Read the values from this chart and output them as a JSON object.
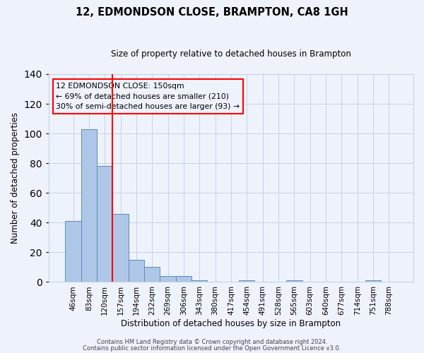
{
  "title": "12, EDMONDSON CLOSE, BRAMPTON, CA8 1GH",
  "subtitle": "Size of property relative to detached houses in Brampton",
  "xlabel": "Distribution of detached houses by size in Brampton",
  "ylabel": "Number of detached properties",
  "categories": [
    "46sqm",
    "83sqm",
    "120sqm",
    "157sqm",
    "194sqm",
    "232sqm",
    "269sqm",
    "306sqm",
    "343sqm",
    "380sqm",
    "417sqm",
    "454sqm",
    "491sqm",
    "528sqm",
    "565sqm",
    "603sqm",
    "640sqm",
    "677sqm",
    "714sqm",
    "751sqm",
    "788sqm"
  ],
  "values": [
    41,
    103,
    78,
    46,
    15,
    10,
    4,
    4,
    1,
    0,
    0,
    1,
    0,
    0,
    1,
    0,
    0,
    0,
    0,
    1,
    0
  ],
  "bar_color": "#aec6e8",
  "bar_edge_color": "#5b8db8",
  "vline_color": "red",
  "vline_pos": 2.5,
  "ylim": [
    0,
    140
  ],
  "yticks": [
    0,
    20,
    40,
    60,
    80,
    100,
    120,
    140
  ],
  "annotation_text": "12 EDMONDSON CLOSE: 150sqm\n← 69% of detached houses are smaller (210)\n30% of semi-detached houses are larger (93) →",
  "annotation_box_color": "red",
  "footer_line1": "Contains HM Land Registry data © Crown copyright and database right 2024.",
  "footer_line2": "Contains public sector information licensed under the Open Government Licence v3.0.",
  "background_color": "#eef2fb",
  "grid_color": "#c8d0e8"
}
